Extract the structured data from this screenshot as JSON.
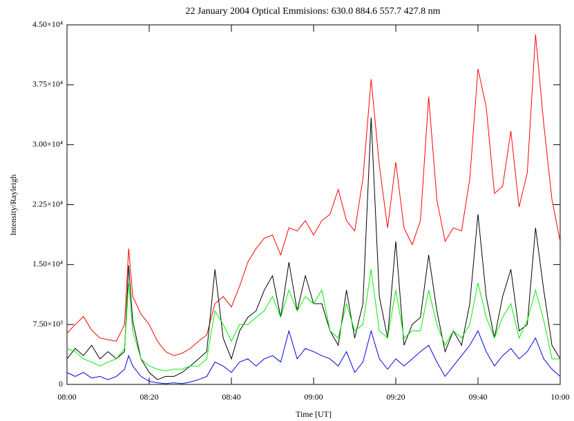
{
  "chart_data": {
    "type": "line",
    "title": "22 January 2004      Optical Emmisions: 630.0 884.6 557.7 427.8 nm",
    "xlabel": "Time [UT]",
    "ylabel": "Intensity/Rayleigh",
    "x": [
      "08:00",
      "08:02",
      "08:04",
      "08:06",
      "08:08",
      "08:10",
      "08:12",
      "08:14",
      "08:15",
      "08:16",
      "08:18",
      "08:20",
      "08:22",
      "08:24",
      "08:26",
      "08:28",
      "08:30",
      "08:32",
      "08:34",
      "08:36",
      "08:38",
      "08:40",
      "08:42",
      "08:44",
      "08:46",
      "08:48",
      "08:50",
      "08:52",
      "08:54",
      "08:56",
      "08:58",
      "09:00",
      "09:02",
      "09:04",
      "09:06",
      "09:08",
      "09:10",
      "09:12",
      "09:14",
      "09:16",
      "09:18",
      "09:20",
      "09:22",
      "09:24",
      "09:26",
      "09:28",
      "09:30",
      "09:32",
      "09:34",
      "09:36",
      "09:38",
      "09:40",
      "09:42",
      "09:44",
      "09:46",
      "09:48",
      "09:50",
      "09:52",
      "09:54",
      "09:56",
      "09:58",
      "10:00"
    ],
    "xlim": [
      "08:00",
      "10:00"
    ],
    "xticks": [
      "08:00",
      "08:20",
      "08:40",
      "09:00",
      "09:20",
      "09:40",
      "10:00"
    ],
    "ylim": [
      0,
      45000
    ],
    "yticks": [
      0,
      {
        "value": 7500,
        "label": "7.50×10³"
      },
      {
        "value": 15000,
        "label": "1.50×10⁴"
      },
      {
        "value": 22500,
        "label": "2.25×10⁴"
      },
      {
        "value": 30000,
        "label": "3.00×10⁴"
      },
      {
        "value": 37500,
        "label": "3.75×10⁴"
      },
      {
        "value": 45000,
        "label": "4.50×10⁴"
      }
    ],
    "series": [
      {
        "color": "#ff0000",
        "values": [
          6400,
          7500,
          8500,
          6800,
          5800,
          5600,
          5400,
          7500,
          17000,
          11000,
          8800,
          7500,
          5400,
          4100,
          3600,
          3900,
          4500,
          5400,
          6200,
          10100,
          11000,
          9700,
          12300,
          15300,
          17000,
          18300,
          18700,
          16200,
          19600,
          19200,
          20500,
          18700,
          20500,
          21300,
          24400,
          20500,
          19200,
          25700,
          38200,
          27400,
          19600,
          27800,
          19600,
          17500,
          20500,
          36000,
          23100,
          17900,
          19600,
          19200,
          25700,
          39500,
          34700,
          23900,
          24800,
          31700,
          22200,
          26500,
          43800,
          32600,
          23100,
          17900
        ]
      },
      {
        "color": "#000000",
        "values": [
          3200,
          4500,
          3600,
          4900,
          3200,
          4100,
          3200,
          4100,
          14900,
          7900,
          3200,
          1500,
          600,
          1000,
          1000,
          1500,
          2300,
          3200,
          4100,
          14400,
          5800,
          3200,
          6700,
          8400,
          9200,
          11800,
          13600,
          8400,
          15300,
          9200,
          13600,
          10100,
          10100,
          6700,
          4900,
          11800,
          5800,
          10100,
          33400,
          11000,
          5800,
          17900,
          4900,
          7500,
          8400,
          16200,
          9200,
          4100,
          6700,
          4900,
          10100,
          21300,
          11000,
          5800,
          11000,
          14400,
          6700,
          7500,
          19600,
          11800,
          4900,
          3200
        ]
      },
      {
        "color": "#00ee00",
        "values": [
          4500,
          4100,
          3200,
          2800,
          2300,
          2800,
          3200,
          4500,
          12700,
          6700,
          3200,
          2300,
          1900,
          1700,
          1900,
          1900,
          2300,
          2300,
          3200,
          9200,
          7500,
          5400,
          7500,
          7500,
          8400,
          9200,
          11000,
          8400,
          11800,
          9200,
          11000,
          10100,
          11800,
          6700,
          5800,
          10100,
          6700,
          7500,
          14400,
          6700,
          5800,
          11800,
          5800,
          6700,
          6700,
          11800,
          7500,
          4900,
          6700,
          5800,
          7500,
          12700,
          8400,
          5800,
          8400,
          10100,
          5800,
          8000,
          11800,
          8000,
          3200,
          3200
        ]
      },
      {
        "color": "#0000dd",
        "values": [
          1500,
          1000,
          1500,
          800,
          1000,
          600,
          1000,
          1900,
          3600,
          2300,
          1000,
          400,
          200,
          100,
          200,
          100,
          300,
          600,
          1000,
          2800,
          2300,
          1500,
          2800,
          3200,
          2300,
          3200,
          3600,
          2800,
          6700,
          3200,
          4500,
          4100,
          3600,
          3200,
          2300,
          4100,
          1500,
          2800,
          6700,
          3200,
          1900,
          3200,
          2300,
          3200,
          4100,
          4900,
          2800,
          1000,
          2300,
          3600,
          4900,
          6700,
          4100,
          2300,
          3600,
          4500,
          3200,
          4100,
          5800,
          3200,
          1900,
          1000
        ]
      }
    ]
  }
}
